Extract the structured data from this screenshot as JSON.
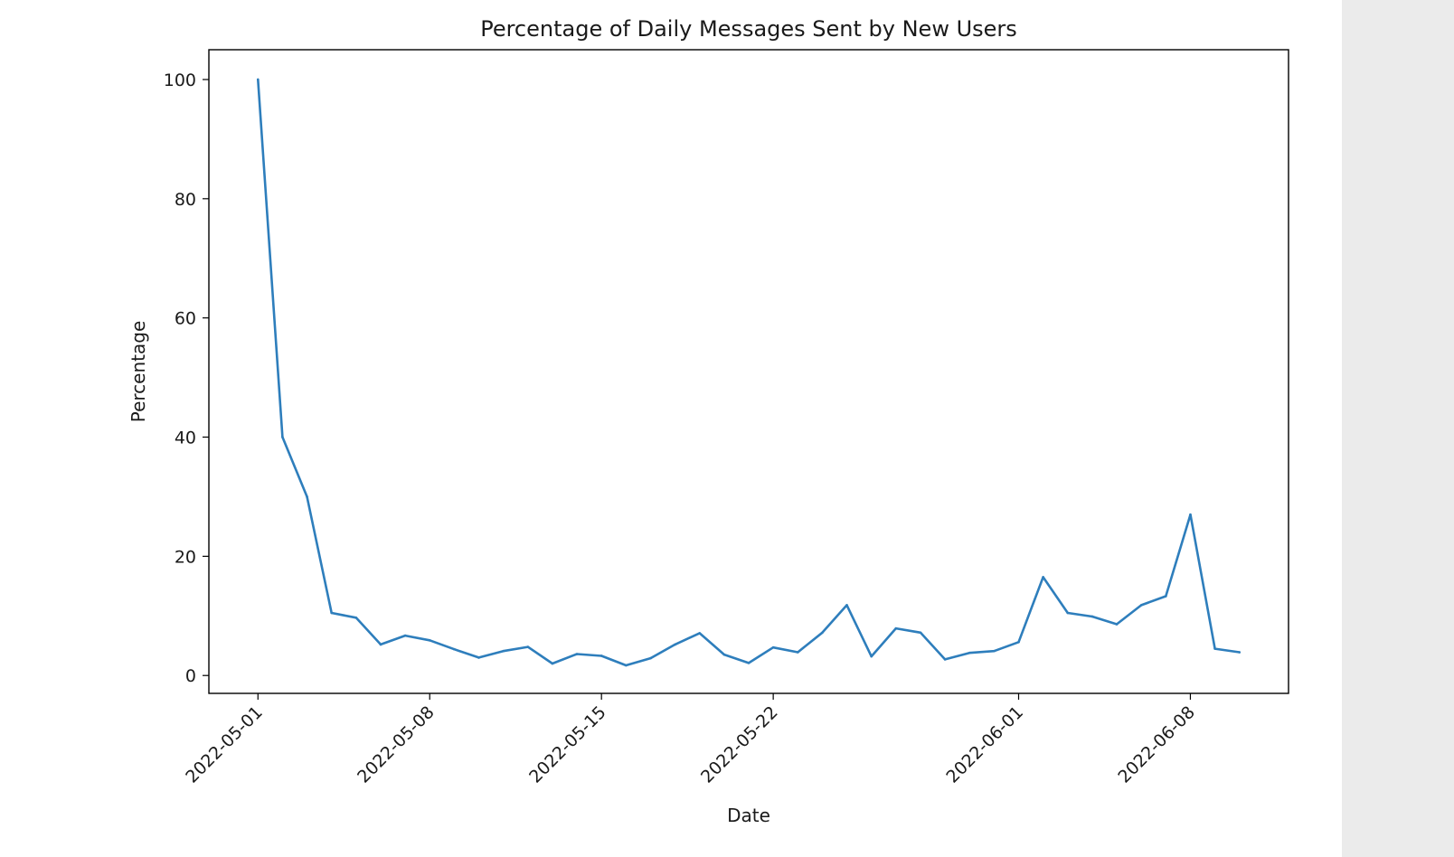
{
  "chart_data": {
    "type": "line",
    "title": "Percentage of Daily Messages Sent by New Users",
    "xlabel": "Date",
    "ylabel": "Percentage",
    "xlim": [
      "2022-04-29",
      "2022-06-12"
    ],
    "ylim": [
      -3,
      105
    ],
    "yticks": [
      0,
      20,
      40,
      60,
      80,
      100
    ],
    "xticks": [
      "2022-05-01",
      "2022-05-08",
      "2022-05-15",
      "2022-05-22",
      "2022-06-01",
      "2022-06-08"
    ],
    "grid": false,
    "line_color": "#2e7ebc",
    "series": [
      {
        "x": [
          "2022-05-01",
          "2022-05-02",
          "2022-05-03",
          "2022-05-04",
          "2022-05-05",
          "2022-05-06",
          "2022-05-07",
          "2022-05-08",
          "2022-05-09",
          "2022-05-10",
          "2022-05-11",
          "2022-05-12",
          "2022-05-13",
          "2022-05-14",
          "2022-05-15",
          "2022-05-16",
          "2022-05-17",
          "2022-05-18",
          "2022-05-19",
          "2022-05-20",
          "2022-05-21",
          "2022-05-22",
          "2022-05-23",
          "2022-05-24",
          "2022-05-25",
          "2022-05-26",
          "2022-05-27",
          "2022-05-28",
          "2022-05-29",
          "2022-05-30",
          "2022-05-31",
          "2022-06-01",
          "2022-06-02",
          "2022-06-03",
          "2022-06-04",
          "2022-06-05",
          "2022-06-06",
          "2022-06-07",
          "2022-06-08",
          "2022-06-09",
          "2022-06-10"
        ],
        "values": [
          100,
          40,
          30,
          10.5,
          9.7,
          5.2,
          6.7,
          5.9,
          4.4,
          3.0,
          4.1,
          4.8,
          2.0,
          3.6,
          3.3,
          1.7,
          2.9,
          5.2,
          7.1,
          3.5,
          2.1,
          4.7,
          3.9,
          7.2,
          11.8,
          3.2,
          7.9,
          7.2,
          2.7,
          3.8,
          4.1,
          5.6,
          16.5,
          10.5,
          9.9,
          8.6,
          11.8,
          13.3,
          27.0,
          4.5,
          3.9
        ]
      }
    ]
  }
}
